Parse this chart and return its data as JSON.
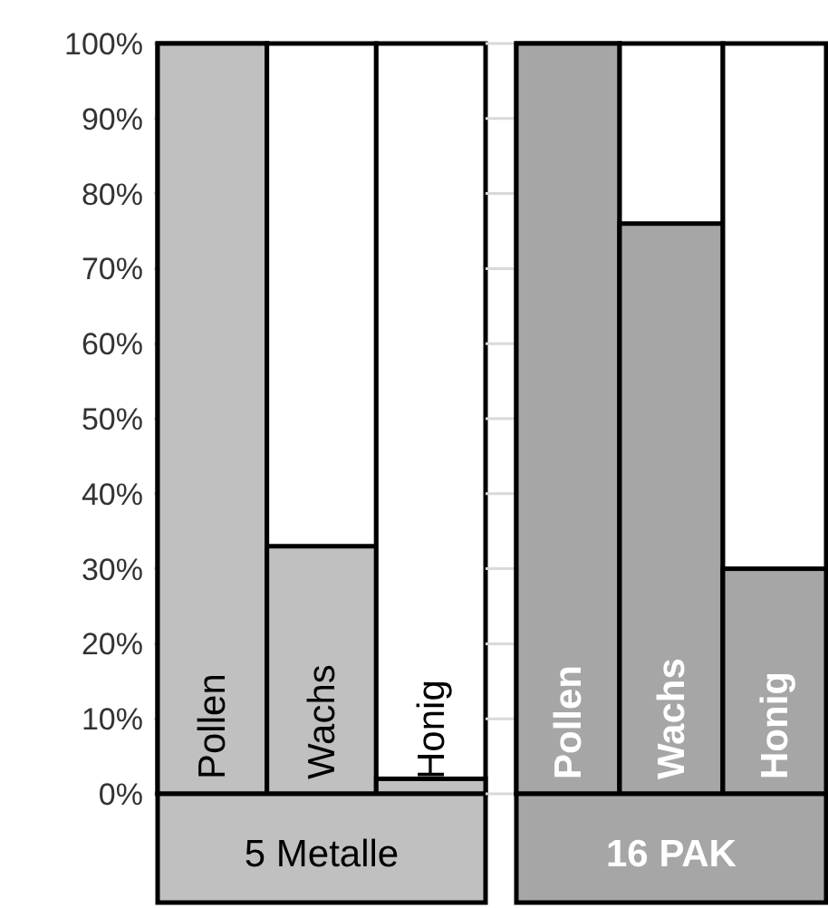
{
  "chart_data": [
    {
      "type": "bar",
      "xlabel": "5 Metalle",
      "categories": [
        "Pollen",
        "Wachs",
        "Honig"
      ],
      "values": [
        100,
        33,
        2
      ],
      "color": "#c0c0c0",
      "ylim": [
        0,
        100
      ],
      "yticks": [
        {
          "value": 0,
          "label": "0%"
        },
        {
          "value": 10,
          "label": "10%"
        },
        {
          "value": 20,
          "label": "20%"
        },
        {
          "value": 30,
          "label": "30%"
        },
        {
          "value": 40,
          "label": "40%"
        },
        {
          "value": 50,
          "label": "50%"
        },
        {
          "value": 60,
          "label": "60%"
        },
        {
          "value": 70,
          "label": "70%"
        },
        {
          "value": 80,
          "label": "80%"
        },
        {
          "value": 90,
          "label": "90%"
        },
        {
          "value": 100,
          "label": "100%"
        }
      ],
      "grid": "y"
    },
    {
      "type": "bar",
      "xlabel": "16 PAK",
      "categories": [
        "Pollen",
        "Wachs",
        "Honig"
      ],
      "values": [
        100,
        76,
        30
      ],
      "color": "#a6a6a6",
      "ylim": [
        0,
        100
      ],
      "yticks": [
        {
          "value": 0,
          "label": null
        },
        {
          "value": 10,
          "label": null
        },
        {
          "value": 20,
          "label": null
        },
        {
          "value": 30,
          "label": null
        },
        {
          "value": 40,
          "label": null
        },
        {
          "value": 50,
          "label": null
        },
        {
          "value": 60,
          "label": null
        },
        {
          "value": 70,
          "label": null
        },
        {
          "value": 80,
          "label": null
        },
        {
          "value": 90,
          "label": null
        },
        {
          "value": 100,
          "label": null
        }
      ],
      "grid": "y",
      "tick_labels": "x"
    }
  ]
}
